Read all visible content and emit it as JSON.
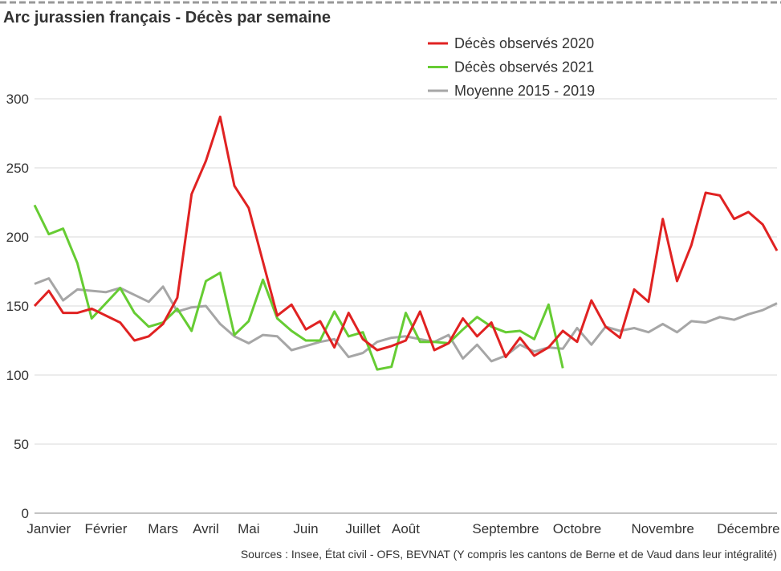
{
  "chart_data": {
    "type": "line",
    "title": "Arc jurassien français - Décès par semaine",
    "note": "Sources : Insee, État civil - OFS, BEVNAT (Y compris les cantons de Berne et de Vaud dans leur intégralité)",
    "categories": [
      null,
      "Janvier",
      null,
      null,
      null,
      "Février",
      null,
      null,
      null,
      "Mars",
      null,
      null,
      "Avril",
      null,
      null,
      "Mai",
      null,
      null,
      null,
      "Juin",
      null,
      null,
      null,
      "Juillet",
      null,
      null,
      "Août",
      null,
      null,
      null,
      null,
      null,
      null,
      "Septembre",
      null,
      null,
      null,
      null,
      "Octobre",
      null,
      null,
      null,
      null,
      null,
      "Novembre",
      null,
      null,
      null,
      null,
      null,
      "Décembre",
      null,
      null
    ],
    "series": [
      {
        "name": "Décès observés 2020",
        "color": "#e02222",
        "values": [
          150,
          161,
          145,
          145,
          148,
          143,
          138,
          125,
          128,
          137,
          156,
          231,
          255,
          287,
          237,
          221,
          182,
          143,
          151,
          133,
          139,
          120,
          145,
          126,
          118,
          121,
          125,
          146,
          118,
          123,
          141,
          128,
          138,
          113,
          127,
          114,
          120,
          132,
          124,
          154,
          135,
          127,
          162,
          153,
          213,
          168,
          194,
          232,
          230,
          213,
          218,
          209,
          190
        ]
      },
      {
        "name": "Décès observés 2021",
        "color": "#66cc33",
        "values": [
          223,
          202,
          206,
          181,
          141,
          152,
          163,
          145,
          135,
          138,
          148,
          132,
          168,
          174,
          129,
          139,
          169,
          141,
          132,
          125,
          125,
          146,
          128,
          131,
          104,
          106,
          145,
          124,
          124,
          123,
          133,
          142,
          135,
          131,
          132,
          126,
          151,
          105,
          null,
          null,
          null,
          null,
          null,
          null,
          null,
          null,
          null,
          null,
          null,
          null,
          null,
          null,
          null
        ]
      },
      {
        "name": "Moyenne 2015 - 2019",
        "color": "#a6a6a6",
        "values": [
          166,
          170,
          154,
          162,
          161,
          160,
          163,
          158,
          153,
          164,
          146,
          149,
          150,
          137,
          128,
          123,
          129,
          128,
          118,
          121,
          124,
          126,
          113,
          116,
          124,
          127,
          128,
          126,
          124,
          129,
          112,
          122,
          110,
          114,
          122,
          117,
          120,
          119,
          134,
          122,
          135,
          132,
          134,
          131,
          137,
          131,
          139,
          138,
          142,
          140,
          144,
          147,
          152
        ]
      }
    ],
    "ylim": [
      0,
      300
    ],
    "yticks": [
      0,
      50,
      100,
      150,
      200,
      250,
      300
    ],
    "grid": true,
    "legend": "top-right"
  }
}
